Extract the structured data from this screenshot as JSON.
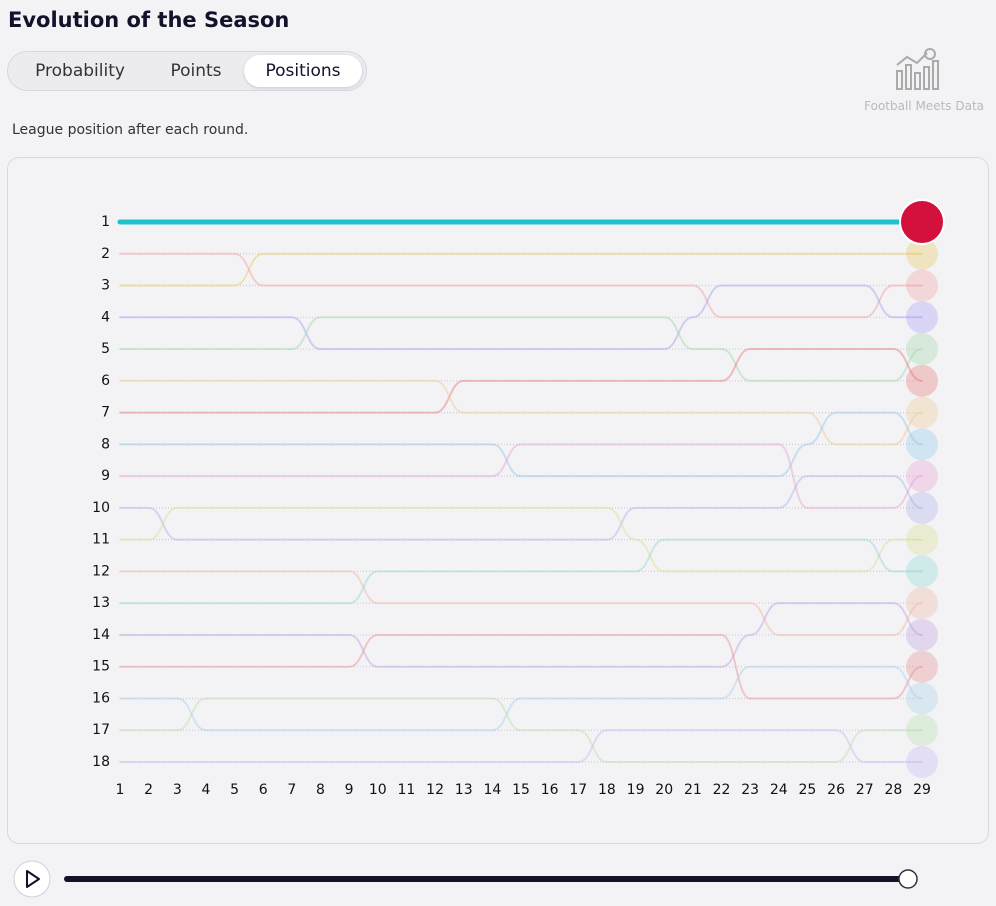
{
  "header": {
    "title": "Evolution of the Season",
    "subtitle": "League position after each round.",
    "brand": "Football Meets Data"
  },
  "tabs": {
    "items": [
      "Probability",
      "Points",
      "Positions"
    ],
    "active": 2
  },
  "chart_data": {
    "type": "bump",
    "x": [
      1,
      2,
      3,
      4,
      5,
      6,
      7,
      8,
      9,
      10,
      11,
      12,
      13,
      14,
      15,
      16,
      17,
      18,
      19,
      20,
      21,
      22,
      23,
      24,
      25,
      26,
      27,
      28,
      29
    ],
    "xlim": [
      1,
      29
    ],
    "ylim": [
      1,
      18
    ],
    "y_inverted": true,
    "grid": true,
    "yticks": [
      1,
      2,
      3,
      4,
      5,
      6,
      7,
      8,
      9,
      10,
      11,
      12,
      13,
      14,
      15,
      16,
      17,
      18
    ],
    "series": [
      {
        "color": "#1fc2cc",
        "highlight": true,
        "values": [
          1,
          1,
          1,
          1,
          1,
          1,
          1,
          1,
          1,
          1,
          1,
          1,
          1,
          1,
          1,
          1,
          1,
          1,
          1,
          1,
          1,
          1,
          1,
          1,
          1,
          1,
          1,
          1,
          1
        ]
      },
      {
        "color": "#e8c95a",
        "values": [
          3,
          3,
          3,
          3,
          3,
          2,
          2,
          2,
          2,
          2,
          2,
          2,
          2,
          2,
          2,
          2,
          2,
          2,
          2,
          2,
          2,
          2,
          2,
          2,
          2,
          2,
          2,
          2,
          2
        ]
      },
      {
        "color": "#f0a0a0",
        "values": [
          2,
          2,
          2,
          2,
          2,
          3,
          3,
          3,
          3,
          3,
          3,
          3,
          3,
          3,
          3,
          3,
          3,
          3,
          3,
          3,
          3,
          4,
          4,
          4,
          4,
          4,
          4,
          3,
          3
        ]
      },
      {
        "color": "#a6a0f0",
        "values": [
          4,
          4,
          4,
          4,
          4,
          4,
          4,
          5,
          5,
          5,
          5,
          5,
          5,
          5,
          5,
          5,
          5,
          5,
          5,
          5,
          4,
          3,
          3,
          3,
          3,
          3,
          3,
          4,
          4
        ]
      },
      {
        "color": "#a0d8a8",
        "values": [
          5,
          5,
          5,
          5,
          5,
          5,
          5,
          4,
          4,
          4,
          4,
          4,
          4,
          4,
          4,
          4,
          4,
          4,
          4,
          4,
          5,
          5,
          6,
          6,
          6,
          6,
          6,
          6,
          5
        ]
      },
      {
        "color": "#e87878",
        "values": [
          7,
          7,
          7,
          7,
          7,
          7,
          7,
          7,
          7,
          7,
          7,
          7,
          6,
          6,
          6,
          6,
          6,
          6,
          6,
          6,
          6,
          6,
          5,
          5,
          5,
          5,
          5,
          5,
          6
        ]
      },
      {
        "color": "#f0c890",
        "values": [
          6,
          6,
          6,
          6,
          6,
          6,
          6,
          6,
          6,
          6,
          6,
          6,
          7,
          7,
          7,
          7,
          7,
          7,
          7,
          7,
          7,
          7,
          7,
          7,
          7,
          8,
          8,
          8,
          7
        ]
      },
      {
        "color": "#90c8e8",
        "values": [
          8,
          8,
          8,
          8,
          8,
          8,
          8,
          8,
          8,
          8,
          8,
          8,
          8,
          8,
          9,
          9,
          9,
          9,
          9,
          9,
          9,
          9,
          9,
          9,
          8,
          7,
          7,
          7,
          8
        ]
      },
      {
        "color": "#e8a0d0",
        "values": [
          9,
          9,
          9,
          9,
          9,
          9,
          9,
          9,
          9,
          9,
          9,
          9,
          9,
          9,
          8,
          8,
          8,
          8,
          8,
          8,
          8,
          8,
          8,
          8,
          10,
          10,
          10,
          10,
          9
        ]
      },
      {
        "color": "#b0b0e8",
        "values": [
          10,
          10,
          11,
          11,
          11,
          11,
          11,
          11,
          11,
          11,
          11,
          11,
          11,
          11,
          11,
          11,
          11,
          11,
          10,
          10,
          10,
          10,
          10,
          10,
          9,
          9,
          9,
          9,
          10
        ]
      },
      {
        "color": "#d8e090",
        "values": [
          11,
          11,
          10,
          10,
          10,
          10,
          10,
          10,
          10,
          10,
          10,
          10,
          10,
          10,
          10,
          10,
          10,
          10,
          11,
          12,
          12,
          12,
          12,
          12,
          12,
          12,
          12,
          11,
          11
        ]
      },
      {
        "color": "#90d8d0",
        "values": [
          13,
          13,
          13,
          13,
          13,
          13,
          13,
          13,
          13,
          12,
          12,
          12,
          12,
          12,
          12,
          12,
          12,
          12,
          12,
          11,
          11,
          11,
          11,
          11,
          11,
          11,
          11,
          12,
          12
        ]
      },
      {
        "color": "#f0b8a0",
        "values": [
          12,
          12,
          12,
          12,
          12,
          12,
          12,
          12,
          12,
          13,
          13,
          13,
          13,
          13,
          13,
          13,
          13,
          13,
          13,
          13,
          13,
          13,
          13,
          14,
          14,
          14,
          14,
          14,
          13
        ]
      },
      {
        "color": "#c0a0e0",
        "values": [
          14,
          14,
          14,
          14,
          14,
          14,
          14,
          14,
          14,
          15,
          15,
          15,
          15,
          15,
          15,
          15,
          15,
          15,
          15,
          15,
          15,
          15,
          14,
          13,
          13,
          13,
          13,
          13,
          14
        ]
      },
      {
        "color": "#e89090",
        "values": [
          15,
          15,
          15,
          15,
          15,
          15,
          15,
          15,
          15,
          14,
          14,
          14,
          14,
          14,
          14,
          14,
          14,
          14,
          14,
          14,
          14,
          14,
          16,
          16,
          16,
          16,
          16,
          16,
          15
        ]
      },
      {
        "color": "#a8d0e8",
        "values": [
          16,
          16,
          16,
          17,
          17,
          17,
          17,
          17,
          17,
          17,
          17,
          17,
          17,
          17,
          16,
          16,
          16,
          16,
          16,
          16,
          16,
          16,
          15,
          15,
          15,
          15,
          15,
          15,
          16
        ]
      },
      {
        "color": "#b8e0a8",
        "values": [
          17,
          17,
          17,
          16,
          16,
          16,
          16,
          16,
          16,
          16,
          16,
          16,
          16,
          16,
          17,
          17,
          17,
          18,
          18,
          18,
          18,
          18,
          18,
          18,
          18,
          18,
          17,
          17,
          17
        ]
      },
      {
        "color": "#c8b8f0",
        "values": [
          18,
          18,
          18,
          18,
          18,
          18,
          18,
          18,
          18,
          18,
          18,
          18,
          18,
          18,
          18,
          18,
          18,
          17,
          17,
          17,
          17,
          17,
          17,
          17,
          17,
          17,
          18,
          18,
          18
        ]
      }
    ]
  }
}
